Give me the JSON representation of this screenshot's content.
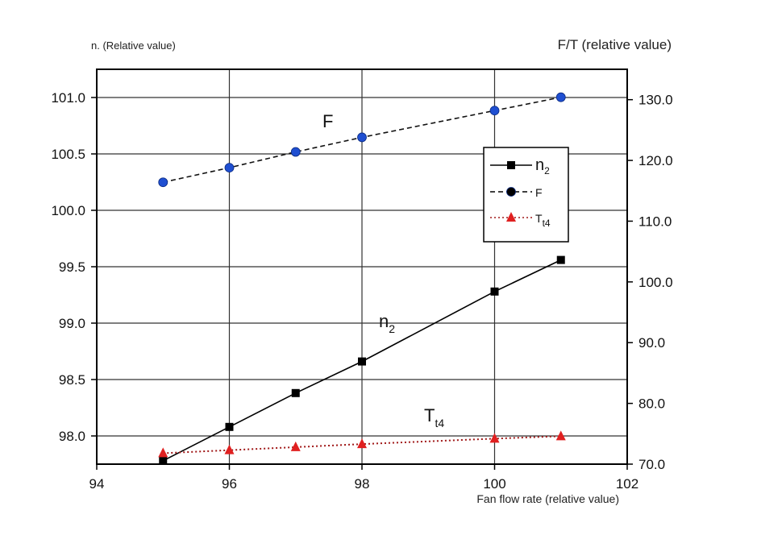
{
  "chart_data": {
    "type": "line",
    "title": "",
    "xlabel": "Fan flow rate (relative value)",
    "ylabel": "n. (Relative value)",
    "y2label": "F/T (relative value)",
    "xlim": [
      94,
      102
    ],
    "ylim": [
      97.75,
      101.25
    ],
    "y2lim": [
      70,
      135
    ],
    "xticks": [
      "94",
      "96",
      "98",
      "100",
      "102"
    ],
    "yticks": [
      "98.0",
      "98.5",
      "99.0",
      "99.5",
      "100.0",
      "100.5",
      "101.0"
    ],
    "y2ticks": [
      "70.0",
      "80.0",
      "90.0",
      "100.0",
      "110.0",
      "120.0",
      "130.0"
    ],
    "grid": true,
    "legend_position": "top-right",
    "series": [
      {
        "name": "n",
        "name_sub": "2",
        "axis": "left",
        "color": "#000000",
        "marker": "square",
        "line_style": "solid",
        "x": [
          95,
          96,
          97,
          98,
          100,
          101
        ],
        "y": [
          97.78,
          98.08,
          98.38,
          98.66,
          99.28,
          99.56
        ]
      },
      {
        "name": "F",
        "name_sub": "",
        "axis": "right",
        "color": "#1f4fd1",
        "marker": "circle",
        "line_style": "dashed",
        "x": [
          95,
          96,
          97,
          98,
          100,
          101
        ],
        "y": [
          116.4,
          118.8,
          121.4,
          123.8,
          128.2,
          130.4
        ]
      },
      {
        "name": "T",
        "name_sub": "t4",
        "axis": "right",
        "color": "#e02020",
        "marker": "triangle",
        "line_style": "dotted",
        "x": [
          95,
          96,
          97,
          98,
          100,
          101
        ],
        "y": [
          71.8,
          72.3,
          72.8,
          73.3,
          74.2,
          74.6
        ]
      }
    ]
  }
}
